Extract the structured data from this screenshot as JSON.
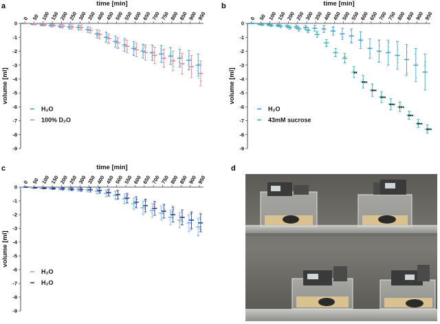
{
  "panel_letters": {
    "a": "a",
    "b": "b",
    "c": "c",
    "d": "d"
  },
  "chart_data": [
    {
      "panel": "a",
      "type": "scatter",
      "title": "",
      "xlabel": "time [min]",
      "ylabel": "volume [ml]",
      "x": [
        0,
        50,
        100,
        150,
        200,
        250,
        300,
        350,
        400,
        450,
        500,
        550,
        600,
        650,
        700,
        750,
        800,
        850,
        900,
        950
      ],
      "x_tick_labels": [
        "0",
        "50",
        "100",
        "150",
        "200",
        "250",
        "300",
        "350",
        "400",
        "450",
        "500",
        "550",
        "600",
        "650",
        "700",
        "750",
        "800",
        "850",
        "900",
        "950"
      ],
      "yticks": [
        0,
        -1,
        -2,
        -3,
        -4,
        -5,
        -6,
        -7,
        -8,
        -9
      ],
      "y_tick_labels": [
        "0",
        "-1",
        "-2",
        "-3",
        "-4",
        "-5",
        "-6",
        "-7",
        "-8",
        "-9"
      ],
      "ylim": [
        -9,
        0
      ],
      "legend_position": "bottom-left",
      "series": [
        {
          "name": "H₂O",
          "color": "#4a9fd0",
          "mean": [
            0,
            -0.05,
            -0.1,
            -0.15,
            -0.2,
            -0.25,
            -0.3,
            -0.45,
            -0.75,
            -1.0,
            -1.3,
            -1.55,
            -1.8,
            -2.0,
            -2.1,
            -2.2,
            -2.35,
            -2.5,
            -2.65,
            -3.0
          ],
          "sd": [
            0.03,
            0.05,
            0.08,
            0.1,
            0.12,
            0.15,
            0.18,
            0.2,
            0.3,
            0.35,
            0.4,
            0.45,
            0.5,
            0.5,
            0.55,
            0.6,
            0.6,
            0.65,
            0.7,
            0.8
          ]
        },
        {
          "name": "100% D₂O",
          "color": "#d98a9a",
          "mean": [
            0,
            -0.05,
            -0.1,
            -0.15,
            -0.2,
            -0.25,
            -0.3,
            -0.5,
            -0.8,
            -1.1,
            -1.4,
            -1.65,
            -1.9,
            -2.1,
            -2.3,
            -2.5,
            -2.7,
            -2.9,
            -3.1,
            -3.6
          ],
          "sd": [
            0.03,
            0.05,
            0.08,
            0.1,
            0.12,
            0.15,
            0.18,
            0.2,
            0.3,
            0.35,
            0.4,
            0.45,
            0.5,
            0.55,
            0.6,
            0.65,
            0.7,
            0.75,
            0.8,
            0.9
          ]
        }
      ],
      "significance": []
    },
    {
      "panel": "b",
      "type": "scatter",
      "title": "",
      "xlabel": "time [min]",
      "ylabel": "volume [ml]",
      "x": [
        0,
        50,
        100,
        150,
        200,
        250,
        300,
        350,
        400,
        450,
        500,
        550,
        600,
        650,
        700,
        750,
        800,
        850,
        900,
        950
      ],
      "x_tick_labels": [
        "0",
        "50",
        "100",
        "150",
        "200",
        "250",
        "300",
        "350",
        "400",
        "450",
        "500",
        "550",
        "600",
        "650",
        "700",
        "750",
        "800",
        "850",
        "900",
        "950"
      ],
      "yticks": [
        0,
        -1,
        -2,
        -3,
        -4,
        -5,
        -6,
        -7,
        -8,
        -9
      ],
      "y_tick_labels": [
        "0",
        "-1",
        "-2",
        "-3",
        "-4",
        "-5",
        "-6",
        "-7",
        "-8",
        "-9"
      ],
      "ylim": [
        -9,
        0
      ],
      "legend_position": "bottom-left",
      "series": [
        {
          "name": "H₂O",
          "color": "#4a9fd0",
          "mean": [
            0,
            -0.05,
            -0.1,
            -0.15,
            -0.2,
            -0.25,
            -0.3,
            -0.35,
            -0.4,
            -0.55,
            -0.75,
            -0.9,
            -1.2,
            -1.8,
            -2.0,
            -2.1,
            -2.3,
            -2.6,
            -3.0,
            -3.5
          ],
          "sd": [
            0.03,
            0.05,
            0.06,
            0.08,
            0.1,
            0.12,
            0.15,
            0.2,
            0.25,
            0.3,
            0.4,
            0.5,
            0.6,
            0.7,
            0.8,
            0.9,
            1.0,
            1.1,
            1.2,
            1.3
          ]
        },
        {
          "name": "43mM sucrose",
          "color": "#3fb3b3",
          "mean": [
            0,
            -0.1,
            -0.15,
            -0.2,
            -0.3,
            -0.4,
            -0.5,
            -0.8,
            -1.4,
            -2.1,
            -2.5,
            -3.5,
            -4.2,
            -4.8,
            -5.3,
            -5.8,
            -6.0,
            -6.6,
            -7.2,
            -7.6
          ],
          "sd": [
            0.03,
            0.05,
            0.08,
            0.1,
            0.12,
            0.15,
            0.18,
            0.2,
            0.25,
            0.3,
            0.35,
            0.4,
            0.45,
            0.45,
            0.4,
            0.4,
            0.35,
            0.3,
            0.3,
            0.3
          ]
        }
      ],
      "significance": [
        {
          "x": 550,
          "label": "**"
        },
        {
          "x": 600,
          "label": "***"
        },
        {
          "x": 650,
          "label": "***"
        },
        {
          "x": 700,
          "label": "***"
        },
        {
          "x": 750,
          "label": "***"
        },
        {
          "x": 800,
          "label": "***"
        },
        {
          "x": 850,
          "label": "***"
        },
        {
          "x": 900,
          "label": "***"
        },
        {
          "x": 950,
          "label": "***"
        }
      ]
    },
    {
      "panel": "c",
      "type": "scatter",
      "title": "",
      "xlabel": "time [min]",
      "ylabel": "volume [ml]",
      "x": [
        0,
        50,
        100,
        150,
        200,
        250,
        300,
        350,
        400,
        450,
        500,
        550,
        600,
        650,
        700,
        750,
        800,
        850,
        900,
        950
      ],
      "x_tick_labels": [
        "0",
        "50",
        "100",
        "150",
        "200",
        "250",
        "300",
        "350",
        "400",
        "450",
        "500",
        "550",
        "600",
        "650",
        "700",
        "750",
        "800",
        "850",
        "900",
        "950"
      ],
      "yticks": [
        0,
        -1,
        -2,
        -3,
        -4,
        -5,
        -6,
        -7,
        -8,
        -9
      ],
      "y_tick_labels": [
        "0",
        "-1",
        "-2",
        "-3",
        "-4",
        "-5",
        "-6",
        "-7",
        "-8",
        "-9"
      ],
      "ylim": [
        -9,
        0
      ],
      "legend_position": "bottom-left",
      "series": [
        {
          "name": "H₂O",
          "color": "#7ab8e0",
          "mean": [
            0,
            -0.05,
            -0.08,
            -0.1,
            -0.12,
            -0.15,
            -0.18,
            -0.2,
            -0.3,
            -0.45,
            -0.6,
            -0.85,
            -1.2,
            -1.5,
            -1.7,
            -1.9,
            -2.2,
            -2.4,
            -2.6,
            -2.9
          ],
          "sd": [
            0.03,
            0.04,
            0.05,
            0.06,
            0.08,
            0.1,
            0.12,
            0.15,
            0.2,
            0.25,
            0.3,
            0.35,
            0.4,
            0.45,
            0.5,
            0.5,
            0.55,
            0.55,
            0.6,
            0.65
          ]
        },
        {
          "name": "H₂O",
          "color": "#2c3e8c",
          "mean": [
            0,
            -0.05,
            -0.08,
            -0.1,
            -0.12,
            -0.15,
            -0.18,
            -0.2,
            -0.25,
            -0.4,
            -0.55,
            -0.8,
            -1.1,
            -1.35,
            -1.55,
            -1.75,
            -2.0,
            -2.2,
            -2.4,
            -2.6
          ],
          "sd": [
            0.03,
            0.04,
            0.05,
            0.06,
            0.08,
            0.1,
            0.12,
            0.15,
            0.2,
            0.25,
            0.3,
            0.35,
            0.4,
            0.45,
            0.5,
            0.5,
            0.55,
            0.55,
            0.6,
            0.65
          ]
        }
      ],
      "significance": []
    }
  ]
}
